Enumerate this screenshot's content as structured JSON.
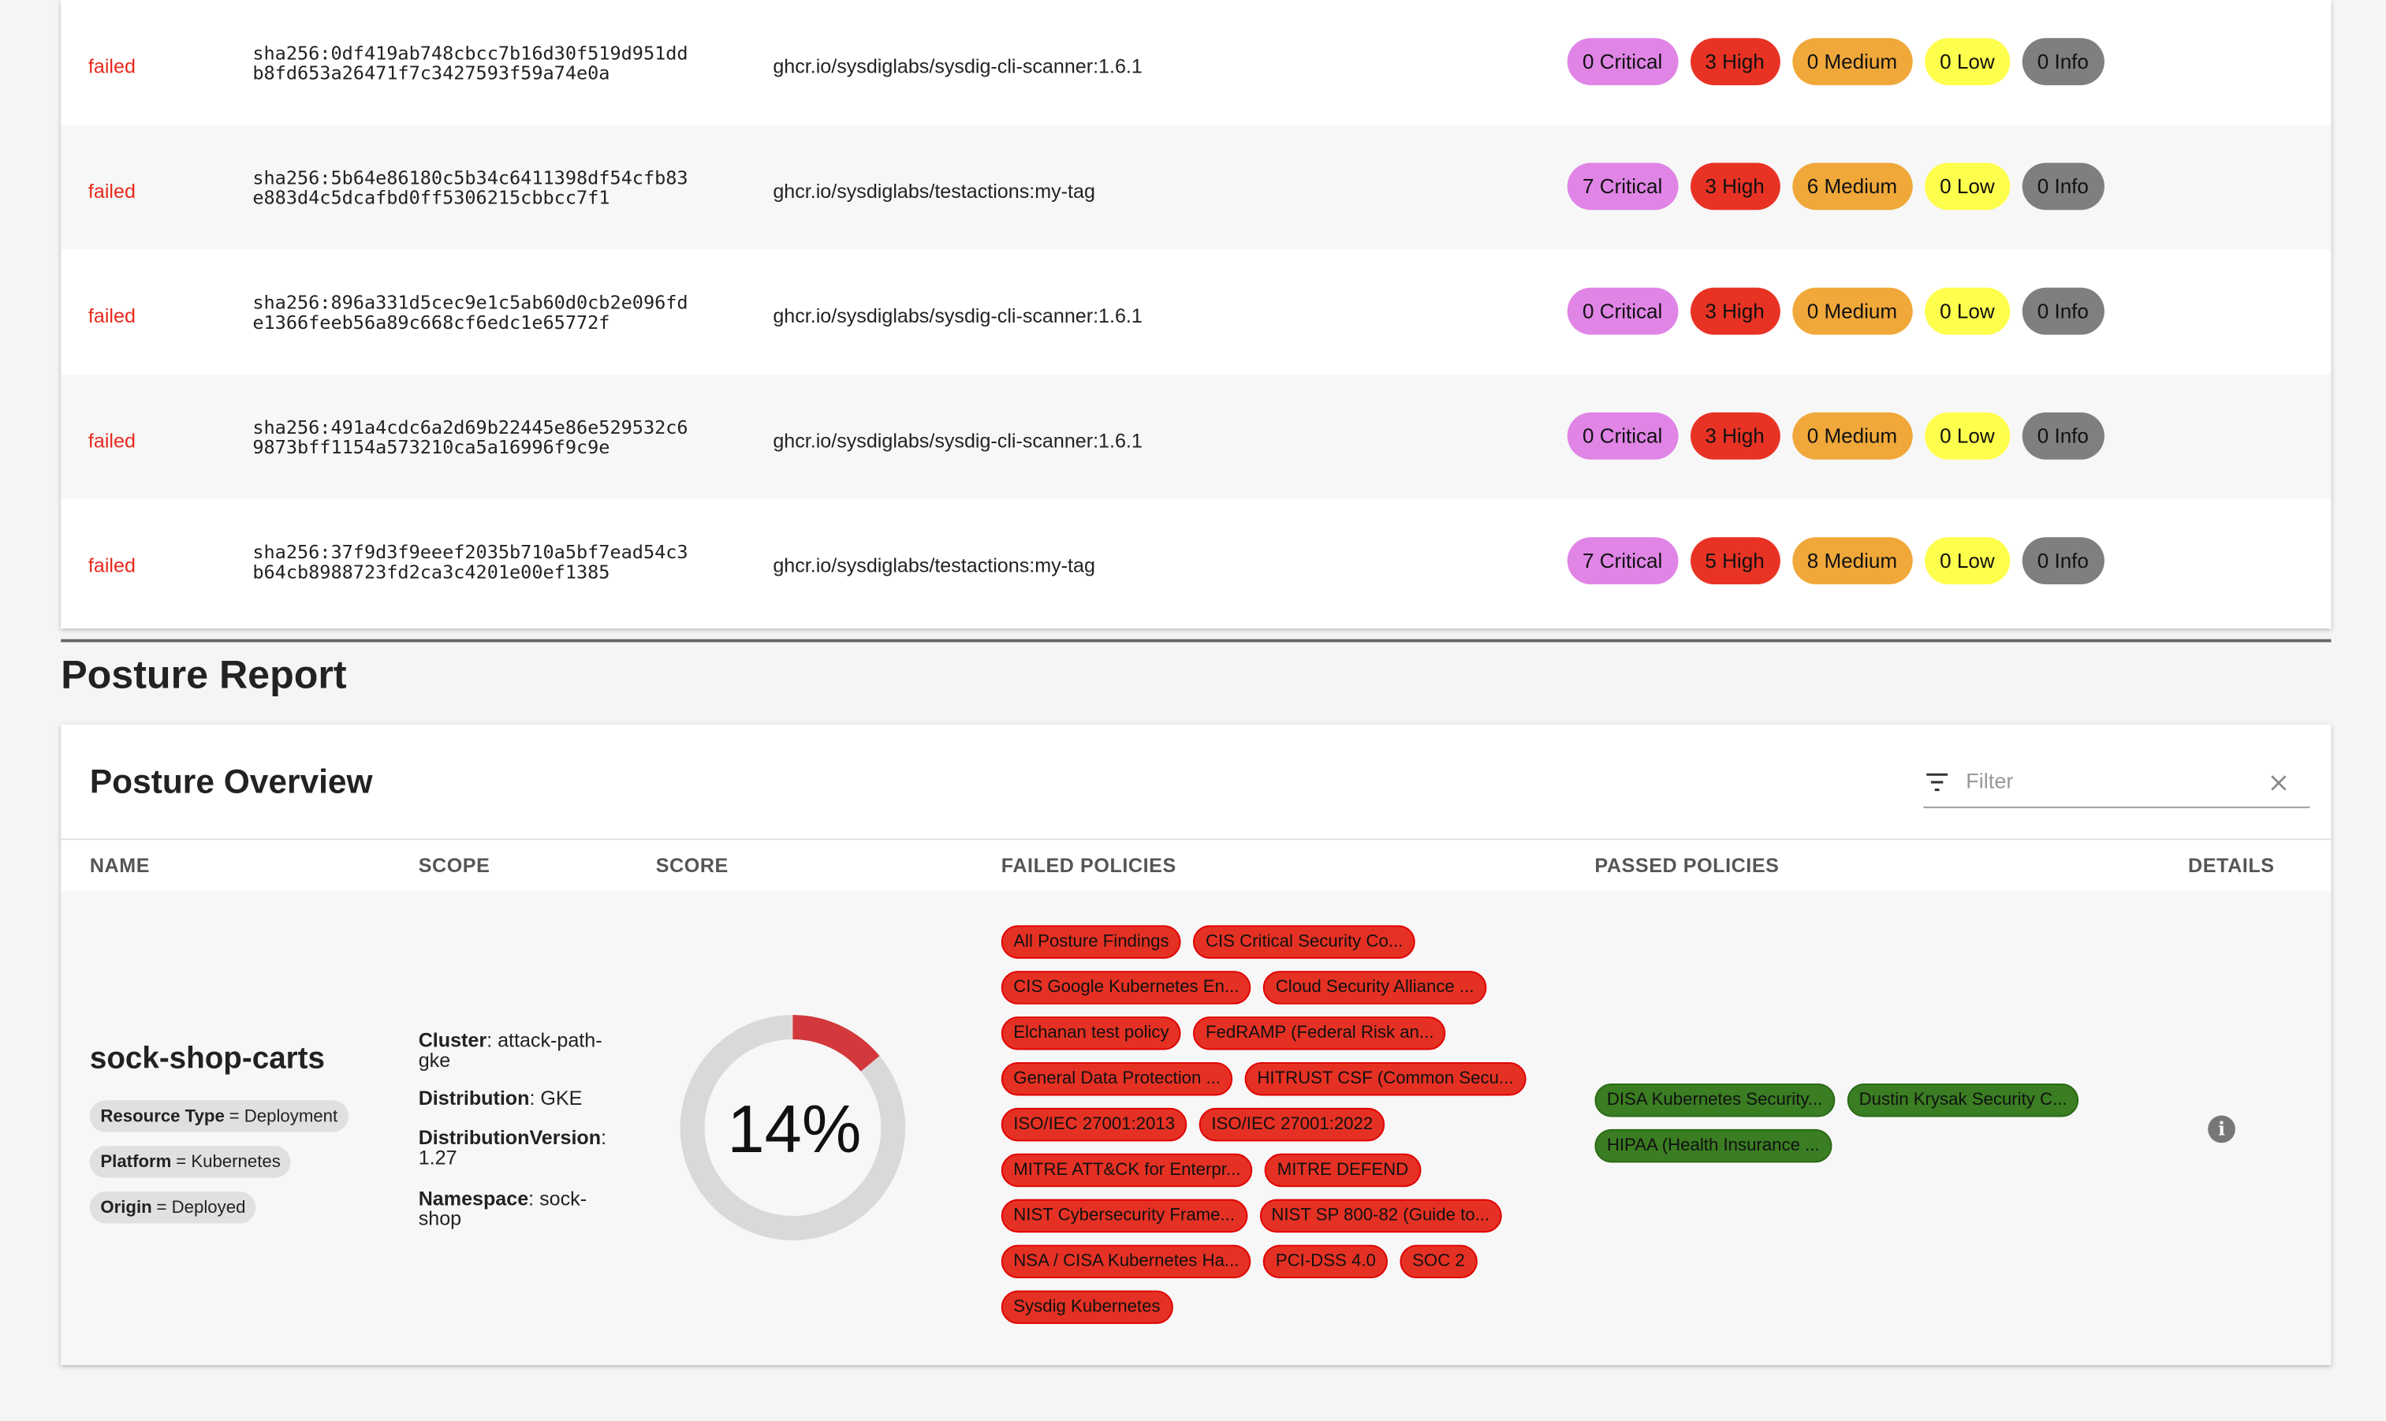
{
  "scan_results": [
    {
      "status": "failed",
      "digest_line1": "sha256:0df419ab748cbcc7b16d30f519d951dd",
      "digest_line2": "b8fd653a26471f7c3427593f59a74e0a",
      "image": "ghcr.io/sysdiglabs/sysdig-cli-scanner:1.6.1",
      "critical": "0 Critical",
      "high": "3 High",
      "medium": "0 Medium",
      "low": "0 Low",
      "info": "0 Info"
    },
    {
      "status": "failed",
      "digest_line1": "sha256:5b64e86180c5b34c6411398df54cfb83",
      "digest_line2": "e883d4c5dcafbd0ff5306215cbbcc7f1",
      "image": "ghcr.io/sysdiglabs/testactions:my-tag",
      "critical": "7 Critical",
      "high": "3 High",
      "medium": "6 Medium",
      "low": "0 Low",
      "info": "0 Info"
    },
    {
      "status": "failed",
      "digest_line1": "sha256:896a331d5cec9e1c5ab60d0cb2e096fd",
      "digest_line2": "e1366feeb56a89c668cf6edc1e65772f",
      "image": "ghcr.io/sysdiglabs/sysdig-cli-scanner:1.6.1",
      "critical": "0 Critical",
      "high": "3 High",
      "medium": "0 Medium",
      "low": "0 Low",
      "info": "0 Info"
    },
    {
      "status": "failed",
      "digest_line1": "sha256:491a4cdc6a2d69b22445e86e529532c6",
      "digest_line2": "9873bff1154a573210ca5a16996f9c9e",
      "image": "ghcr.io/sysdiglabs/sysdig-cli-scanner:1.6.1",
      "critical": "0 Critical",
      "high": "3 High",
      "medium": "0 Medium",
      "low": "0 Low",
      "info": "0 Info"
    },
    {
      "status": "failed",
      "digest_line1": "sha256:37f9d3f9eeef2035b710a5bf7ead54c3",
      "digest_line2": "b64cb8988723fd2ca3c4201e00ef1385",
      "image": "ghcr.io/sysdiglabs/testactions:my-tag",
      "critical": "7 Critical",
      "high": "5 High",
      "medium": "8 Medium",
      "low": "0 Low",
      "info": "0 Info"
    }
  ],
  "severity_colors": {
    "critical": "#e085e6",
    "high": "#e83324",
    "medium": "#f0a83a",
    "low": "#fefe4c",
    "info": "#7f7f7f"
  },
  "posture_report": {
    "heading": "Posture Report",
    "card_title": "Posture Overview",
    "filter_placeholder": "Filter",
    "columns": {
      "name": "NAME",
      "scope": "SCOPE",
      "score": "SCORE",
      "failed": "FAILED POLICIES",
      "passed": "PASSED POLICIES",
      "details": "DETAILS"
    },
    "row": {
      "name": "sock-shop-carts",
      "chips": [
        {
          "key": "Resource Type",
          "value": "= Deployment"
        },
        {
          "key": "Platform",
          "value": "= Kubernetes"
        },
        {
          "key": "Origin",
          "value": "= Deployed"
        }
      ],
      "scope": [
        {
          "key": "Cluster",
          "value": ": attack-path-gke"
        },
        {
          "key": "Distribution",
          "value": ": GKE"
        },
        {
          "key": "DistributionVersion",
          "value": ": 1.27"
        },
        {
          "key": "Namespace",
          "value": ": sock-shop"
        }
      ],
      "score_label": "14%",
      "score_percent": 14,
      "failed_policies": [
        "All Posture Findings",
        "CIS Critical Security Co...",
        "CIS Google Kubernetes En...",
        "Cloud Security Alliance ...",
        "Elchanan test policy",
        "FedRAMP (Federal Risk an...",
        "General Data Protection ...",
        "HITRUST CSF (Common Secu...",
        "ISO/IEC 27001:2013",
        "ISO/IEC 27001:2022",
        "MITRE ATT&CK for Enterpr...",
        "MITRE DEFEND",
        "NIST Cybersecurity Frame...",
        "NIST SP 800-82 (Guide to...",
        "NSA / CISA Kubernetes Ha...",
        "PCI-DSS 4.0",
        "SOC 2",
        "Sysdig Kubernetes"
      ],
      "passed_policies": [
        "DISA Kubernetes Security...",
        "Dustin Krysak Security C...",
        "HIPAA (Health Insurance ..."
      ],
      "details_icon": "info-icon"
    }
  }
}
